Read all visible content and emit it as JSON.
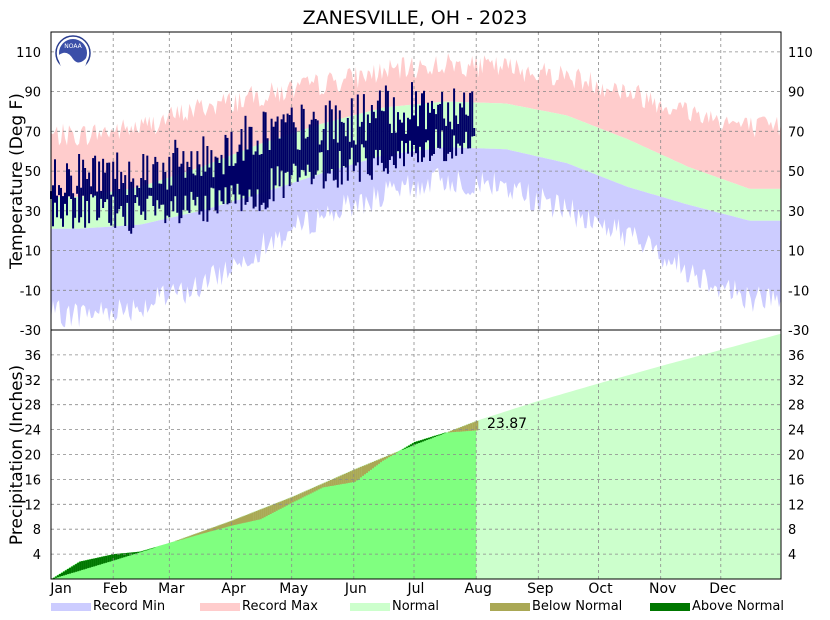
{
  "title": "ZANESVILLE, OH - 2023",
  "colors": {
    "record_min": "#ccccff",
    "record_max": "#ffcccc",
    "normal": "#ccffcc",
    "below_normal": "#aaa855",
    "above_normal": "#007700",
    "observed_temp": "#000066",
    "observed_precip_fill": "#80ff80"
  },
  "legend": [
    {
      "key": "record_min",
      "label": "Record Min",
      "color": "#ccccff"
    },
    {
      "key": "record_max",
      "label": "Record Max",
      "color": "#ffcccc"
    },
    {
      "key": "normal",
      "label": "Normal",
      "color": "#ccffcc"
    },
    {
      "key": "below_normal",
      "label": "Below Normal",
      "color": "#aaa855"
    },
    {
      "key": "above_normal",
      "label": "Above Normal",
      "color": "#007700"
    }
  ],
  "logo": {
    "name": "noaa-logo",
    "text": "NOAA"
  },
  "chart_data": [
    {
      "type": "area",
      "panel": "temperature",
      "ylabel": "Temperature (Deg F)",
      "ylim": [
        -30,
        120
      ],
      "yticks": [
        -30,
        -10,
        10,
        30,
        50,
        70,
        90,
        110
      ],
      "grid": true,
      "months": [
        "Jan",
        "Feb",
        "Mar",
        "Apr",
        "May",
        "Jun",
        "Jul",
        "Aug",
        "Sep",
        "Oct",
        "Nov",
        "Dec"
      ],
      "x_unit": "day of year",
      "record_max_by_month": [
        68,
        72,
        82,
        88,
        94,
        100,
        104,
        102,
        98,
        90,
        80,
        72
      ],
      "record_min_by_month": [
        -22,
        -18,
        -8,
        12,
        28,
        38,
        46,
        42,
        30,
        18,
        0,
        -14
      ],
      "normal_high_by_month": [
        37,
        42,
        52,
        64,
        74,
        82,
        85,
        84,
        78,
        66,
        52,
        41
      ],
      "normal_low_by_month": [
        21,
        23,
        30,
        39,
        49,
        58,
        62,
        61,
        54,
        42,
        33,
        25
      ],
      "observed_through_day": 212,
      "observed_high_by_month": [
        48,
        50,
        55,
        70,
        72,
        80,
        84
      ],
      "observed_low_by_month": [
        30,
        28,
        30,
        40,
        50,
        56,
        63
      ]
    },
    {
      "type": "area",
      "panel": "precipitation",
      "ylabel": "Precipitation (Inches)",
      "ylim": [
        0,
        40
      ],
      "yticks": [
        4,
        8,
        12,
        16,
        20,
        24,
        28,
        32,
        36
      ],
      "grid": true,
      "months": [
        "Jan",
        "Feb",
        "Mar",
        "Apr",
        "May",
        "Jun",
        "Jul",
        "Aug",
        "Sep",
        "Oct",
        "Nov",
        "Dec"
      ],
      "x_unit": "day of year",
      "normal_cumulative": {
        "x": [
          1,
          32,
          60,
          91,
          121,
          152,
          182,
          213,
          244,
          274,
          305,
          335,
          365
        ],
        "y": [
          0,
          3.0,
          5.8,
          9.4,
          13.2,
          17.6,
          21.6,
          25.4,
          28.6,
          31.4,
          34.2,
          36.8,
          39.4
        ]
      },
      "observed_cumulative": {
        "x": [
          1,
          15,
          32,
          45,
          60,
          75,
          91,
          105,
          121,
          136,
          152,
          166,
          182,
          197,
          213
        ],
        "y": [
          0,
          2.8,
          4.0,
          4.4,
          5.8,
          7.2,
          8.6,
          9.6,
          12.3,
          14.7,
          15.6,
          19.0,
          22.0,
          23.5,
          23.87
        ]
      },
      "current_total_label": "23.87"
    }
  ]
}
